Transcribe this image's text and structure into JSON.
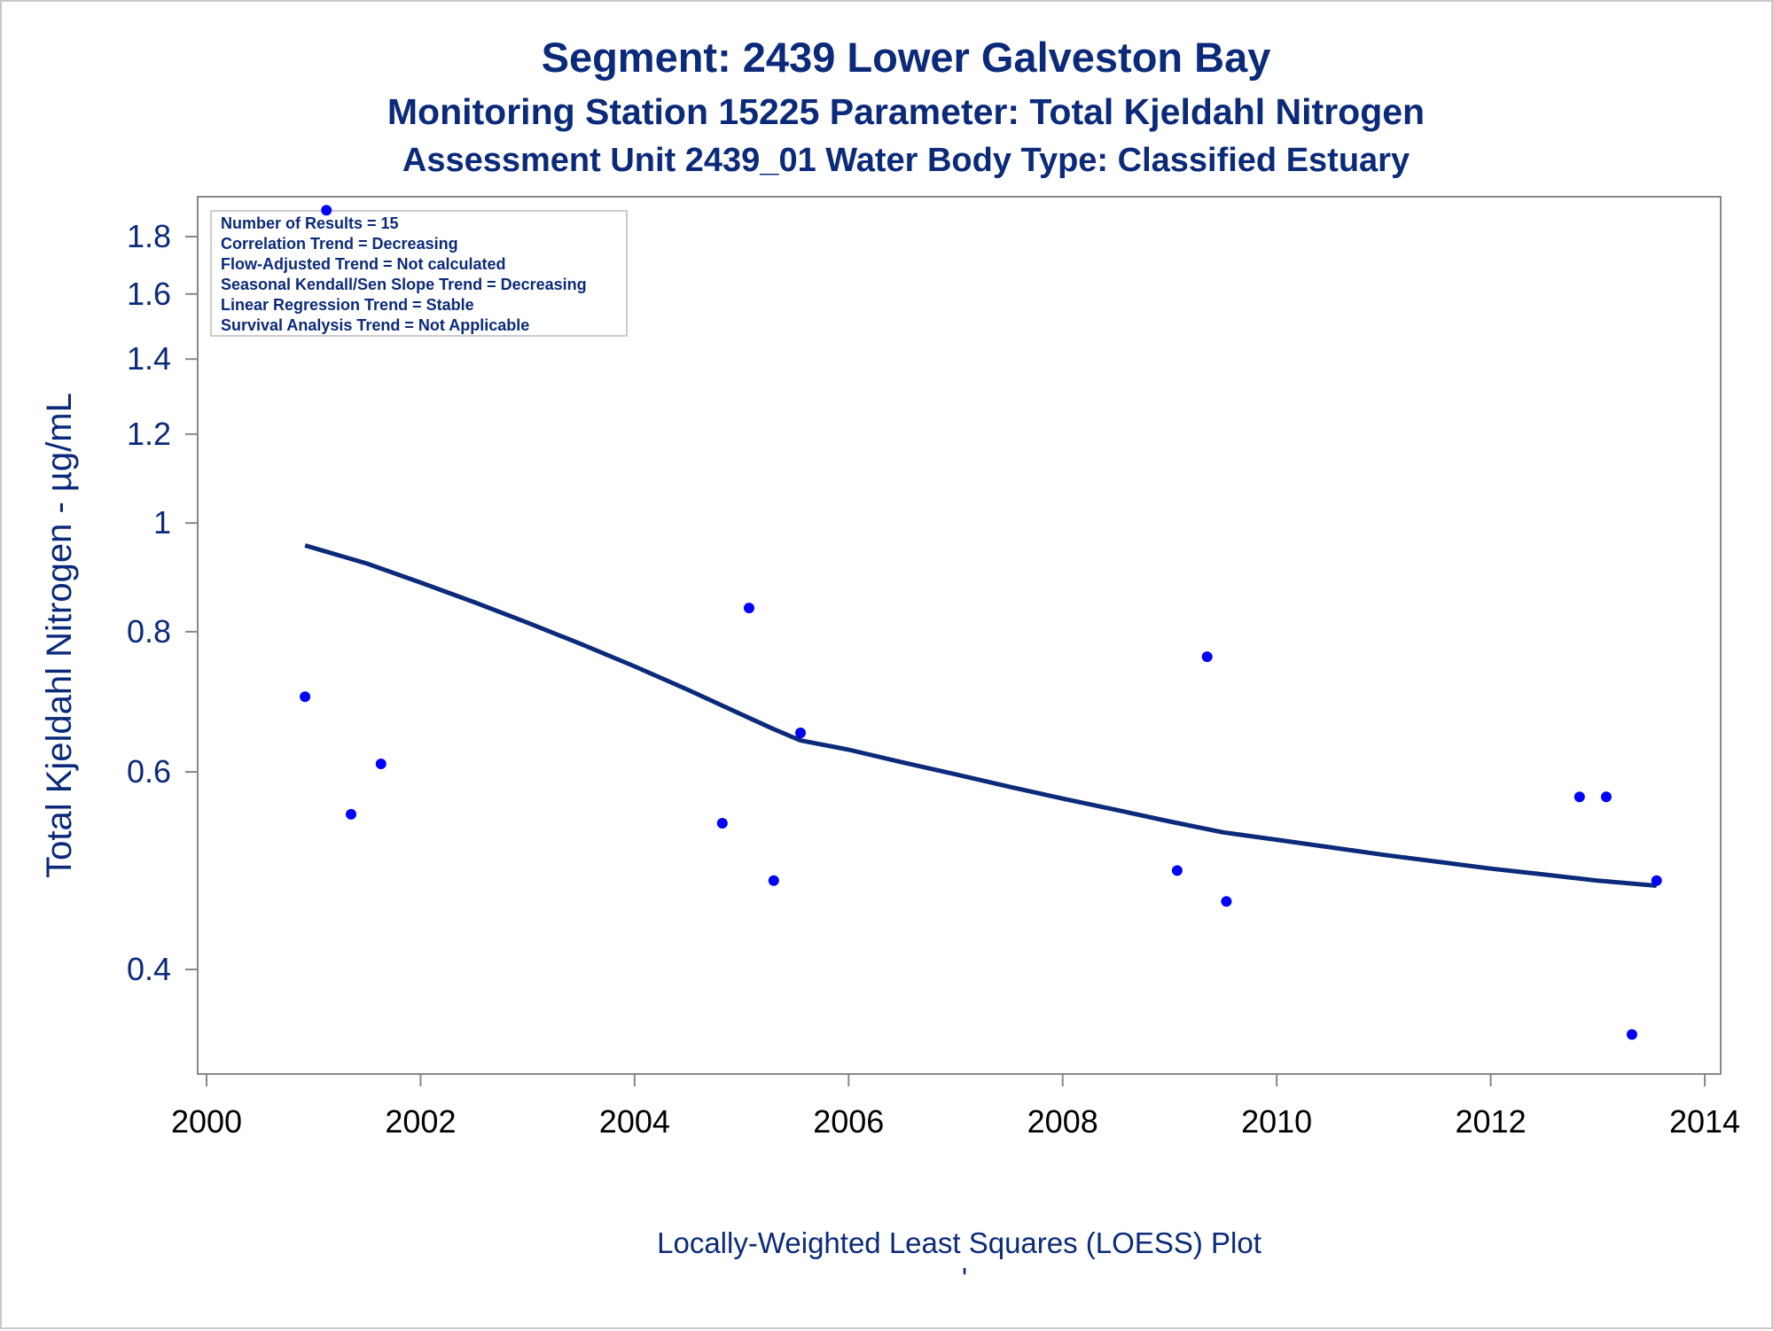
{
  "chart_data": {
    "type": "scatter",
    "title": "Segment: 2439  Lower Galveston Bay",
    "subtitle": "Monitoring Station 15225 Parameter: Total Kjeldahl Nitrogen",
    "subtitle2": "Assessment Unit 2439_01   Water Body Type: Classified Estuary",
    "ylabel": "Total Kjeldahl Nitrogen -  µg/mL",
    "xlabel": "",
    "footnote": "Locally-Weighted Least Squares (LOESS) Plot",
    "footnote_mark": "'",
    "y_scale": "log",
    "xlim": [
      2000,
      2014
    ],
    "ylim": [
      0.34,
      1.95
    ],
    "x_ticks": [
      2000,
      2002,
      2004,
      2006,
      2008,
      2010,
      2012,
      2014
    ],
    "y_ticks": [
      0.4,
      0.6,
      0.8,
      1,
      1.2,
      1.4,
      1.6,
      1.8
    ],
    "x_tick_labels": [
      "2000",
      "2002",
      "2004",
      "2006",
      "2008",
      "2010",
      "2012",
      "2014"
    ],
    "y_tick_labels": [
      "0.4",
      "0.6",
      "0.8",
      "1",
      "1.2",
      "1.4",
      "1.6",
      "1.8"
    ],
    "grid": false,
    "legend_placement": "top-left",
    "annotations": [
      "Number of Results = 15",
      "Correlation Trend = Decreasing",
      "Flow-Adjusted Trend = Not calculated",
      "Seasonal Kendall/Sen Slope Trend = Decreasing",
      "Linear Regression Trend = Stable",
      "Survival Analysis Trend = Not Applicable"
    ],
    "series": [
      {
        "type": "scatter",
        "color": "#0000ff",
        "x": [
          2000.92,
          2001.12,
          2001.35,
          2001.63,
          2004.82,
          2005.07,
          2005.3,
          2005.55,
          2009.07,
          2009.35,
          2009.53,
          2012.83,
          2013.08,
          2013.32,
          2013.55
        ],
        "y": [
          0.7,
          1.9,
          0.55,
          0.61,
          0.54,
          0.84,
          0.48,
          0.65,
          0.49,
          0.76,
          0.46,
          0.57,
          0.57,
          0.35,
          0.48
        ]
      },
      {
        "type": "line",
        "color": "#0b2a7a",
        "x": [
          2000.92,
          2001.5,
          2002.0,
          2002.5,
          2003.0,
          2003.5,
          2004.0,
          2004.5,
          2005.0,
          2005.3,
          2005.55,
          2006.0,
          2006.5,
          2007.0,
          2007.5,
          2008.0,
          2008.5,
          2009.0,
          2009.5,
          2010.0,
          2010.5,
          2011.0,
          2011.5,
          2012.0,
          2012.5,
          2013.0,
          2013.55
        ],
        "y": [
          0.955,
          0.92,
          0.885,
          0.85,
          0.815,
          0.78,
          0.745,
          0.71,
          0.675,
          0.655,
          0.64,
          0.628,
          0.612,
          0.597,
          0.582,
          0.568,
          0.555,
          0.542,
          0.53,
          0.522,
          0.514,
          0.506,
          0.499,
          0.492,
          0.486,
          0.48,
          0.475
        ]
      }
    ]
  }
}
